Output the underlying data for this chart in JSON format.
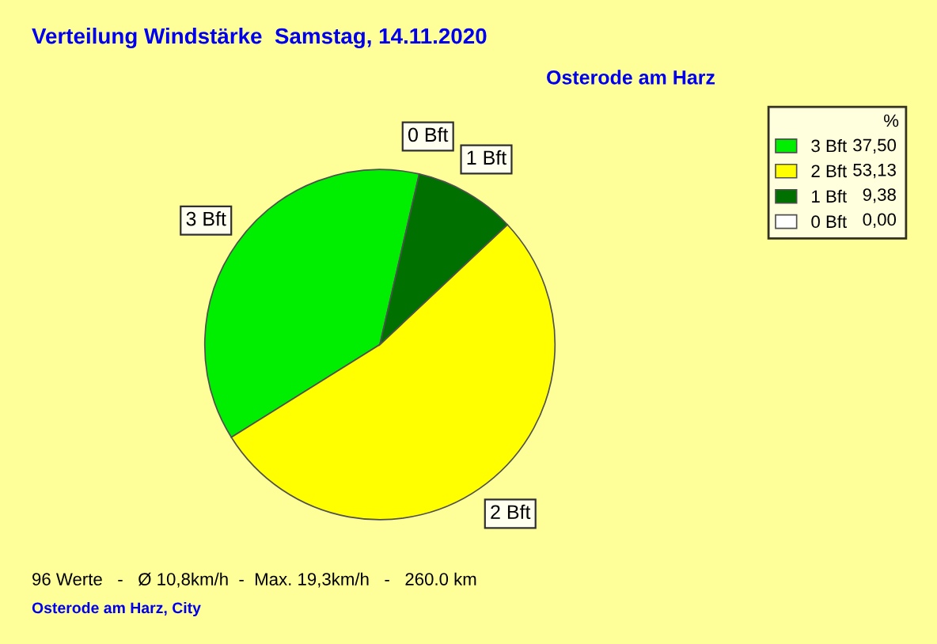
{
  "chart_data": {
    "type": "pie",
    "title": "Verteilung Windstärke  Samstag, 14.11.2020",
    "subtitle": "Osterode am Harz",
    "categories": [
      "3 Bft",
      "2 Bft",
      "1 Bft",
      "0 Bft"
    ],
    "values": [
      37.5,
      53.13,
      9.38,
      0
    ],
    "value_labels": [
      "37,50",
      "53,13",
      "9,38",
      "0,00"
    ],
    "colors": [
      "#00ee00",
      "#ffff00",
      "#007000",
      "#ffffff"
    ],
    "legend_title": "%",
    "legend": "top right",
    "annotations": [
      "96 Werte   -   Ø 10,8km/h  -  Max. 19,3km/h   -   260.0 km",
      "Osterode am Harz, City"
    ]
  }
}
